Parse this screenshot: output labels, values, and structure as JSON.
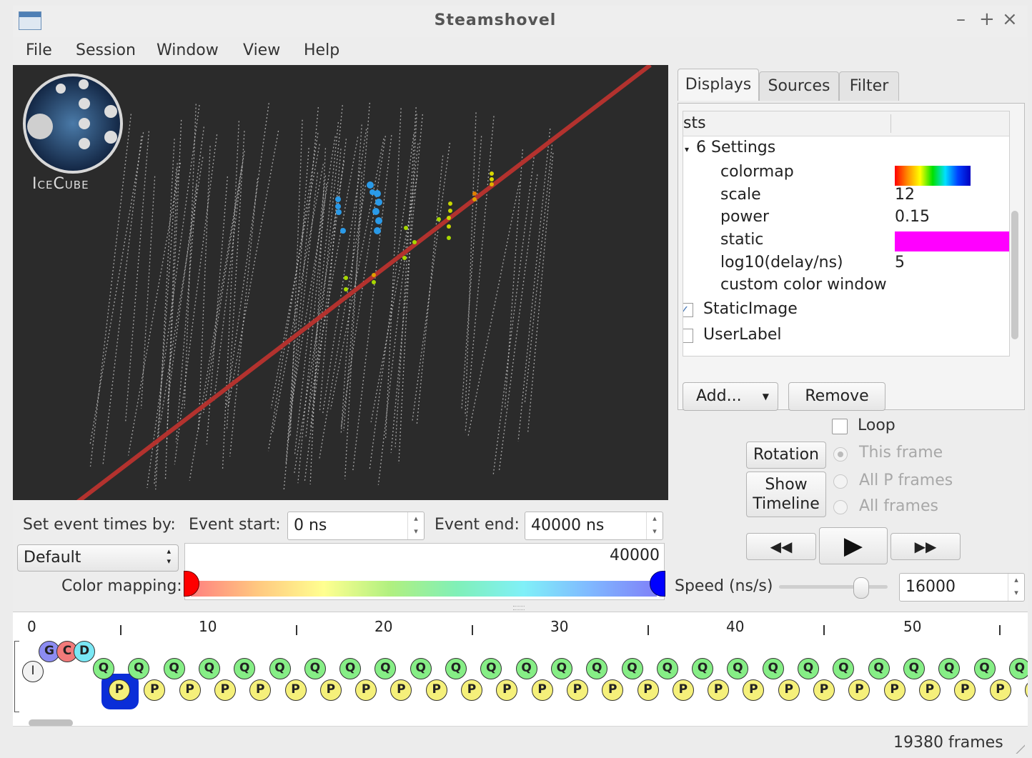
{
  "window": {
    "title": "Steamshovel",
    "controls": [
      "–",
      "+",
      "×"
    ]
  },
  "menu": [
    "File",
    "Session",
    "Window",
    "View",
    "Help"
  ],
  "logo_text": "IceCube",
  "tabs": [
    "Displays",
    "Sources",
    "Filter"
  ],
  "tree": {
    "header": "sts",
    "group": "6 Settings",
    "settings": [
      {
        "name": "colormap",
        "value": ""
      },
      {
        "name": "scale",
        "value": "12"
      },
      {
        "name": "power",
        "value": "0.15"
      },
      {
        "name": "static",
        "value": ""
      },
      {
        "name": "log10(delay/ns)",
        "value": "5"
      },
      {
        "name": "custom color window",
        "value": ""
      }
    ],
    "items": [
      {
        "label": "StaticImage",
        "checked": true
      },
      {
        "label": "UserLabel",
        "checked": false
      }
    ],
    "static_color": "#ff00ff"
  },
  "panel_buttons": {
    "add": "Add...",
    "remove": "Remove"
  },
  "playback": {
    "loop": "Loop",
    "rotation": "Rotation",
    "show_timeline_1": "Show",
    "show_timeline_2": "Timeline",
    "this_frame": "This frame",
    "all_p_frames": "All P frames",
    "all_frames": "All frames",
    "speed_label": "Speed (ns/s)",
    "speed_value": "16000",
    "speed_slider_level": 0.76
  },
  "event": {
    "set_by_label": "Set event times by:",
    "start_label": "Event start:",
    "start_value": "0 ns",
    "end_label": "Event end:",
    "end_value": "40000 ns",
    "mode_value": "Default",
    "color_mapping_label": "Color mapping:",
    "color_max": "40000"
  },
  "timeline": {
    "ticks": [
      "0",
      "10",
      "20",
      "30",
      "40",
      "50"
    ],
    "frame_letters": {
      "I": "I",
      "G": "G",
      "C": "C",
      "D": "D",
      "Q": "Q",
      "P": "P"
    },
    "frame_colors": {
      "I": "#f2f2f2",
      "G": "#8c8cf2",
      "C": "#f27a7a",
      "D": "#7ae8f5",
      "Q": "#86ee86",
      "P": "#f5f07a"
    },
    "selected_color": "#0a2ed8"
  },
  "status": {
    "frames": "19380 frames"
  }
}
